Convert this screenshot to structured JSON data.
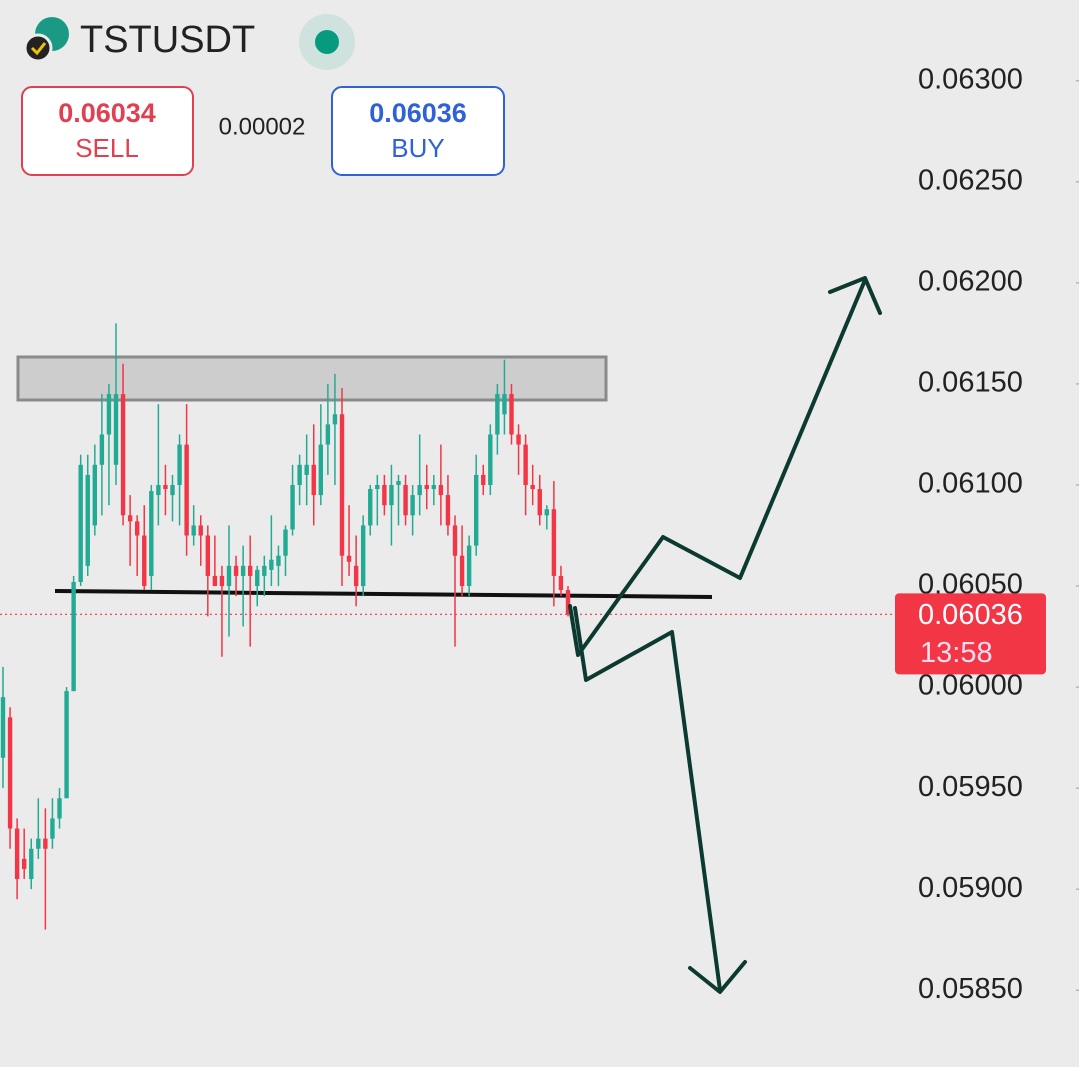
{
  "header": {
    "symbol": "TSTUSDT",
    "sell_price": "0.06034",
    "sell_label": "SELL",
    "spread": "0.00002",
    "buy_price": "0.06036",
    "buy_label": "BUY"
  },
  "chart_data": {
    "type": "candlestick",
    "up_color": "#22ab94",
    "down_color": "#f23645",
    "ylim": [
      0.05812,
      0.0634
    ],
    "yticks": [
      {
        "value": 0.063,
        "label": "0.06300"
      },
      {
        "value": 0.0625,
        "label": "0.06250"
      },
      {
        "value": 0.062,
        "label": "0.06200"
      },
      {
        "value": 0.0615,
        "label": "0.06150"
      },
      {
        "value": 0.061,
        "label": "0.06100"
      },
      {
        "value": 0.0605,
        "label": "0.06050"
      },
      {
        "value": 0.06,
        "label": "0.06000"
      },
      {
        "value": 0.0595,
        "label": "0.05950"
      },
      {
        "value": 0.059,
        "label": "0.05900"
      },
      {
        "value": 0.0585,
        "label": "0.05850"
      }
    ],
    "last_price": 0.06036,
    "countdown": "13:58",
    "open": [
      0.05965,
      0.05985,
      0.0593,
      0.05915,
      0.05905,
      0.0592,
      0.05925,
      0.05925,
      0.05935,
      0.05945,
      0.05998,
      0.06052,
      0.0606,
      0.0608,
      0.0611,
      0.06125,
      0.0611,
      0.06145,
      0.06085,
      0.06082,
      0.06075,
      0.06055,
      0.06095,
      0.061,
      0.06095,
      0.061,
      0.0612,
      0.06075,
      0.0608,
      0.06075,
      0.06055,
      0.06055,
      0.0605,
      0.0606,
      0.06055,
      0.0606,
      0.0605,
      0.06055,
      0.06058,
      0.0606,
      0.06065,
      0.06078,
      0.061,
      0.06105,
      0.0611,
      0.06095,
      0.0612,
      0.0613,
      0.06135,
      0.06065,
      0.0606,
      0.0605,
      0.0608,
      0.06098,
      0.061,
      0.0609,
      0.061,
      0.061,
      0.06085,
      0.06095,
      0.061,
      0.06098,
      0.061,
      0.06095,
      0.0608,
      0.06065,
      0.0605,
      0.0607,
      0.06105,
      0.061,
      0.06125,
      0.06135,
      0.06145,
      0.06125,
      0.0612,
      0.061,
      0.06098,
      0.06085,
      0.06088,
      0.06055,
      0.06048
    ],
    "high": [
      0.0601,
      0.0599,
      0.05935,
      0.0593,
      0.05925,
      0.05945,
      0.0594,
      0.05945,
      0.0595,
      0.06,
      0.06055,
      0.06115,
      0.06115,
      0.0612,
      0.06145,
      0.0615,
      0.0618,
      0.0616,
      0.06095,
      0.06085,
      0.0609,
      0.061,
      0.0614,
      0.0611,
      0.06105,
      0.06125,
      0.0614,
      0.0609,
      0.06085,
      0.0608,
      0.06075,
      0.0606,
      0.0608,
      0.06065,
      0.0607,
      0.06075,
      0.0606,
      0.06065,
      0.06085,
      0.0607,
      0.0608,
      0.0611,
      0.06115,
      0.06125,
      0.0613,
      0.0614,
      0.0615,
      0.06155,
      0.06148,
      0.0609,
      0.06075,
      0.06085,
      0.061,
      0.06105,
      0.06105,
      0.0611,
      0.06105,
      0.06105,
      0.061,
      0.06125,
      0.0611,
      0.06105,
      0.0612,
      0.06105,
      0.06085,
      0.0608,
      0.06075,
      0.06115,
      0.0611,
      0.0613,
      0.0615,
      0.06162,
      0.0615,
      0.0613,
      0.06125,
      0.0611,
      0.06105,
      0.0609,
      0.06102,
      0.0606,
      0.0605
    ],
    "low": [
      0.0595,
      0.0592,
      0.05895,
      0.05905,
      0.059,
      0.05915,
      0.0588,
      0.0592,
      0.0593,
      0.05945,
      0.05998,
      0.0605,
      0.06055,
      0.06075,
      0.06085,
      0.0609,
      0.061,
      0.0608,
      0.0606,
      0.06055,
      0.06048,
      0.06048,
      0.0608,
      0.06085,
      0.06082,
      0.0608,
      0.06065,
      0.0607,
      0.0606,
      0.06035,
      0.0605,
      0.06015,
      0.06025,
      0.06045,
      0.0603,
      0.0602,
      0.0604,
      0.06045,
      0.0605,
      0.0605,
      0.06055,
      0.06075,
      0.0609,
      0.0609,
      0.0608,
      0.0609,
      0.06105,
      0.061,
      0.0605,
      0.06055,
      0.0604,
      0.06045,
      0.06075,
      0.0608,
      0.06085,
      0.0607,
      0.0608,
      0.0608,
      0.06075,
      0.06085,
      0.06088,
      0.0609,
      0.0608,
      0.06075,
      0.0602,
      0.06045,
      0.06045,
      0.06065,
      0.06095,
      0.06095,
      0.06115,
      0.06125,
      0.0612,
      0.06105,
      0.06085,
      0.0609,
      0.0608,
      0.06078,
      0.0604,
      0.06045,
      0.06035
    ],
    "close": [
      0.05995,
      0.0593,
      0.05905,
      0.0591,
      0.0592,
      0.05925,
      0.0592,
      0.05935,
      0.05945,
      0.05998,
      0.06052,
      0.0611,
      0.06105,
      0.0611,
      0.06125,
      0.06145,
      0.06145,
      0.06085,
      0.06082,
      0.06075,
      0.0605,
      0.06097,
      0.061,
      0.06098,
      0.061,
      0.0612,
      0.06075,
      0.0608,
      0.06075,
      0.06055,
      0.0605,
      0.0605,
      0.0606,
      0.06055,
      0.0606,
      0.06055,
      0.06058,
      0.0606,
      0.06063,
      0.06065,
      0.06078,
      0.061,
      0.0611,
      0.0611,
      0.06095,
      0.0612,
      0.0613,
      0.06135,
      0.06065,
      0.06062,
      0.0605,
      0.0608,
      0.06098,
      0.061,
      0.0609,
      0.061,
      0.06102,
      0.06085,
      0.06095,
      0.061,
      0.06098,
      0.061,
      0.06095,
      0.0608,
      0.06065,
      0.0605,
      0.0607,
      0.06105,
      0.061,
      0.06125,
      0.06145,
      0.06145,
      0.06125,
      0.0612,
      0.061,
      0.06098,
      0.06085,
      0.06088,
      0.06055,
      0.06048,
      0.06036
    ]
  }
}
